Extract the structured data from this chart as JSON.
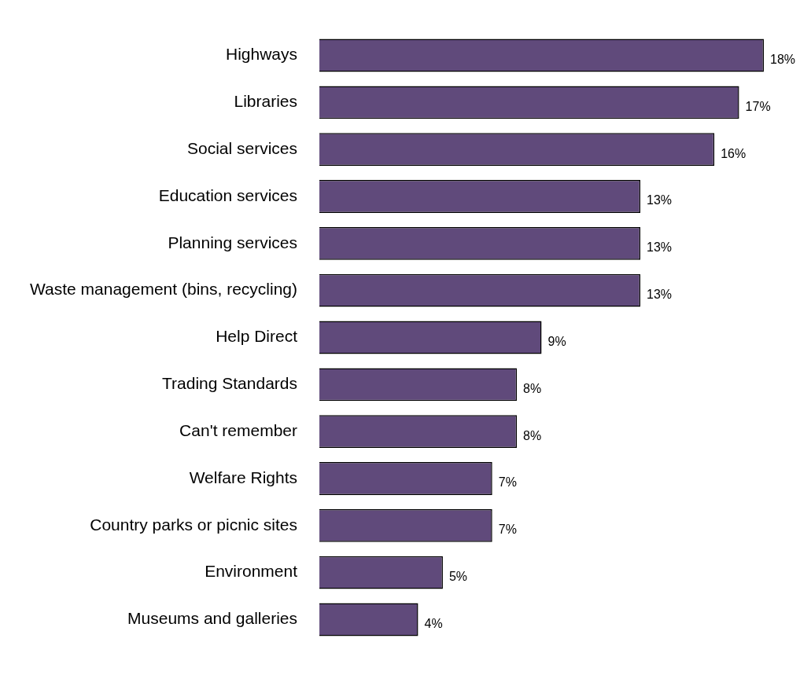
{
  "chart_data": {
    "type": "bar",
    "orientation": "horizontal",
    "categories": [
      "Highways",
      "Libraries",
      "Social services",
      "Education services",
      "Planning services",
      "Waste management (bins, recycling)",
      "Help Direct",
      "Trading Standards",
      "Can't remember",
      "Welfare Rights",
      "Country parks or picnic sites",
      "Environment",
      "Museums and galleries"
    ],
    "values": [
      18,
      17,
      16,
      13,
      13,
      13,
      9,
      8,
      8,
      7,
      7,
      5,
      4
    ],
    "value_labels": [
      "18%",
      "17%",
      "16%",
      "13%",
      "13%",
      "13%",
      "9%",
      "8%",
      "8%",
      "7%",
      "7%",
      "5%",
      "4%"
    ],
    "color": "#604a7b",
    "grid": false,
    "legend": false
  }
}
